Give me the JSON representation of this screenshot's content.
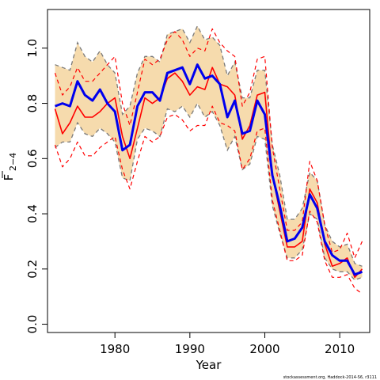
{
  "chart_data": {
    "type": "line",
    "xlabel": "Year",
    "ylabel": "F",
    "ylabel_sub": "2−4",
    "xlim": [
      1971,
      2014
    ],
    "ylim": [
      -0.03,
      1.14
    ],
    "xticks": [
      1980,
      1990,
      2000,
      2010
    ],
    "yticks": [
      0.0,
      0.2,
      0.4,
      0.6,
      0.8,
      1.0
    ],
    "ytick_labels": [
      "0.0",
      "0.2",
      "0.4",
      "0.6",
      "0.8",
      "1.0"
    ],
    "credit": "stockassessment.org, Haddock-2014-S6, r3111",
    "colors": {
      "band_fill": "#f6dbad",
      "band_edge": "#7a7a7a",
      "blue": "#0000ee",
      "red": "#ff0000",
      "axis": "#000000"
    },
    "band": {
      "x": [
        1972,
        1973,
        1974,
        1975,
        1976,
        1977,
        1978,
        1979,
        1980,
        1981,
        1982,
        1983,
        1984,
        1985,
        1986,
        1987,
        1988,
        1989,
        1990,
        1991,
        1992,
        1993,
        1994,
        1995,
        1996,
        1997,
        1998,
        1999,
        2000,
        2001,
        2002,
        2003,
        2004,
        2005,
        2006,
        2007,
        2008,
        2009,
        2010,
        2011,
        2012,
        2013
      ],
      "upper": [
        0.94,
        0.93,
        0.92,
        1.02,
        0.97,
        0.95,
        0.99,
        0.94,
        0.91,
        0.76,
        0.79,
        0.91,
        0.97,
        0.97,
        0.95,
        1.05,
        1.06,
        1.07,
        1.02,
        1.08,
        1.03,
        1.04,
        1.01,
        0.9,
        0.95,
        0.82,
        0.82,
        0.92,
        0.92,
        0.65,
        0.54,
        0.38,
        0.38,
        0.42,
        0.55,
        0.52,
        0.36,
        0.3,
        0.28,
        0.29,
        0.22,
        0.21
      ],
      "lower": [
        0.64,
        0.66,
        0.66,
        0.73,
        0.69,
        0.68,
        0.71,
        0.69,
        0.66,
        0.53,
        0.52,
        0.67,
        0.71,
        0.7,
        0.68,
        0.78,
        0.77,
        0.79,
        0.75,
        0.8,
        0.75,
        0.77,
        0.72,
        0.63,
        0.68,
        0.56,
        0.58,
        0.68,
        0.67,
        0.43,
        0.33,
        0.24,
        0.24,
        0.27,
        0.4,
        0.38,
        0.24,
        0.2,
        0.19,
        0.19,
        0.16,
        0.17
      ]
    },
    "series": [
      {
        "color": "blue",
        "style": "solid-thick",
        "x": [
          1972,
          1973,
          1974,
          1975,
          1976,
          1977,
          1978,
          1979,
          1980,
          1981,
          1982,
          1983,
          1984,
          1985,
          1986,
          1987,
          1988,
          1989,
          1990,
          1991,
          1992,
          1993,
          1994,
          1995,
          1996,
          1997,
          1998,
          1999,
          2000,
          2001,
          2002,
          2003,
          2004,
          2005,
          2006,
          2007,
          2008,
          2009,
          2010,
          2011,
          2012,
          2013
        ],
        "values": [
          0.79,
          0.8,
          0.79,
          0.88,
          0.83,
          0.81,
          0.85,
          0.8,
          0.77,
          0.63,
          0.65,
          0.79,
          0.84,
          0.84,
          0.81,
          0.91,
          0.92,
          0.93,
          0.87,
          0.94,
          0.89,
          0.9,
          0.87,
          0.75,
          0.81,
          0.69,
          0.7,
          0.81,
          0.76,
          0.54,
          0.43,
          0.3,
          0.31,
          0.35,
          0.47,
          0.42,
          0.3,
          0.25,
          0.23,
          0.23,
          0.18,
          0.19
        ]
      },
      {
        "color": "red",
        "style": "solid",
        "x": [
          1972,
          1973,
          1974,
          1975,
          1976,
          1977,
          1978,
          1979,
          1980,
          1981,
          1982,
          1983,
          1984,
          1985,
          1986,
          1987,
          1988,
          1989,
          1990,
          1991,
          1992,
          1993,
          1994,
          1995,
          1996,
          1997,
          1998,
          1999,
          2000,
          2001,
          2002,
          2003,
          2004,
          2005,
          2006,
          2007,
          2008,
          2009,
          2010,
          2011,
          2012,
          2013
        ],
        "values": [
          0.78,
          0.69,
          0.73,
          0.79,
          0.75,
          0.75,
          0.77,
          0.8,
          0.82,
          0.68,
          0.6,
          0.71,
          0.82,
          0.8,
          0.82,
          0.89,
          0.91,
          0.88,
          0.83,
          0.86,
          0.85,
          0.93,
          0.87,
          0.86,
          0.83,
          0.67,
          0.72,
          0.83,
          0.84,
          0.54,
          0.41,
          0.28,
          0.28,
          0.3,
          0.49,
          0.44,
          0.29,
          0.21,
          0.22,
          0.24,
          0.17,
          0.2
        ]
      },
      {
        "color": "red",
        "style": "dashed",
        "x": [
          1972,
          1973,
          1974,
          1975,
          1976,
          1977,
          1978,
          1979,
          1980,
          1981,
          1982,
          1983,
          1984,
          1985,
          1986,
          1987,
          1988,
          1989,
          1990,
          1991,
          1992,
          1993,
          1994,
          1995,
          1996,
          1997,
          1998,
          1999,
          2000,
          2001,
          2002,
          2003,
          2004,
          2005,
          2006,
          2007,
          2008,
          2009,
          2010,
          2011,
          2012,
          2013
        ],
        "values": [
          0.91,
          0.83,
          0.86,
          0.93,
          0.88,
          0.88,
          0.91,
          0.94,
          0.97,
          0.8,
          0.72,
          0.84,
          0.96,
          0.94,
          0.96,
          1.03,
          1.06,
          1.03,
          0.97,
          1.0,
          0.99,
          1.07,
          1.02,
          0.99,
          0.97,
          0.79,
          0.84,
          0.96,
          0.97,
          0.64,
          0.49,
          0.34,
          0.34,
          0.37,
          0.59,
          0.52,
          0.36,
          0.26,
          0.27,
          0.33,
          0.24,
          0.3
        ]
      },
      {
        "color": "red",
        "style": "dashed",
        "x": [
          1972,
          1973,
          1974,
          1975,
          1976,
          1977,
          1978,
          1979,
          1980,
          1981,
          1982,
          1983,
          1984,
          1985,
          1986,
          1987,
          1988,
          1989,
          1990,
          1991,
          1992,
          1993,
          1994,
          1995,
          1996,
          1997,
          1998,
          1999,
          2000,
          2001,
          2002,
          2003,
          2004,
          2005,
          2006,
          2007,
          2008,
          2009,
          2010,
          2011,
          2012,
          2013
        ],
        "values": [
          0.65,
          0.57,
          0.6,
          0.66,
          0.61,
          0.61,
          0.64,
          0.66,
          0.68,
          0.56,
          0.49,
          0.59,
          0.68,
          0.66,
          0.68,
          0.75,
          0.76,
          0.74,
          0.7,
          0.72,
          0.72,
          0.79,
          0.73,
          0.72,
          0.7,
          0.56,
          0.6,
          0.7,
          0.71,
          0.45,
          0.34,
          0.23,
          0.23,
          0.25,
          0.41,
          0.37,
          0.23,
          0.17,
          0.17,
          0.18,
          0.13,
          0.11
        ]
      }
    ]
  }
}
